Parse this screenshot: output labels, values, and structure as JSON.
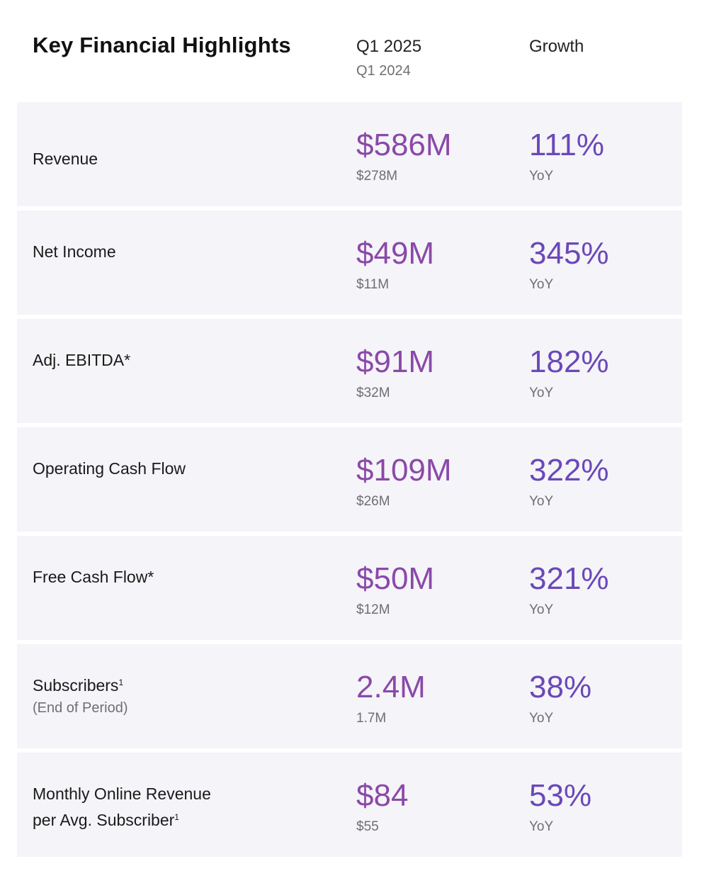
{
  "header": {
    "title": "Key Financial Highlights",
    "current_period": "Q1 2025",
    "prior_period": "Q1 2024",
    "growth_label": "Growth"
  },
  "colors": {
    "value_purple": "#8a49a8",
    "growth_purple": "#6a48b8",
    "row_background": "#f5f4f8"
  },
  "rows": [
    {
      "label": "Revenue",
      "sub": "",
      "superscript": "",
      "value": "$586M",
      "prior": "$278M",
      "growth": "111%",
      "growth_unit": "YoY"
    },
    {
      "label": "Net Income",
      "sub": "",
      "superscript": "",
      "value": "$49M",
      "prior": "$11M",
      "growth": "345%",
      "growth_unit": "YoY"
    },
    {
      "label": "Adj. EBITDA*",
      "sub": "",
      "superscript": "",
      "value": "$91M",
      "prior": "$32M",
      "growth": "182%",
      "growth_unit": "YoY"
    },
    {
      "label": "Operating Cash Flow",
      "sub": "",
      "superscript": "",
      "value": "$109M",
      "prior": "$26M",
      "growth": "322%",
      "growth_unit": "YoY"
    },
    {
      "label": "Free Cash Flow*",
      "sub": "",
      "superscript": "",
      "value": "$50M",
      "prior": "$12M",
      "growth": "321%",
      "growth_unit": "YoY"
    },
    {
      "label": "Subscribers",
      "sub": "(End of Period)",
      "superscript": "1",
      "value": "2.4M",
      "prior": "1.7M",
      "growth": "38%",
      "growth_unit": "YoY"
    },
    {
      "label_line1": "Monthly Online Revenue",
      "label": "per Avg. Subscriber",
      "sub": "",
      "superscript": "1",
      "value": "$84",
      "prior": "$55",
      "growth": "53%",
      "growth_unit": "YoY"
    }
  ]
}
